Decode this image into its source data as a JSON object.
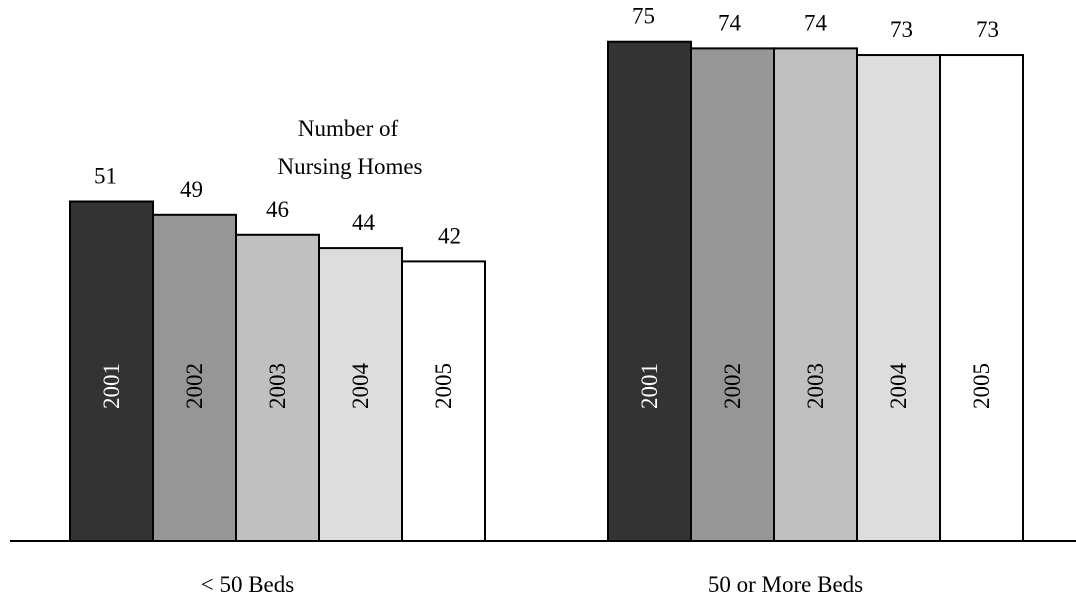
{
  "chart_data": {
    "type": "bar",
    "title": "Number of Nursing Homes",
    "categories": [
      "< 50 Beds",
      "50 or More Beds"
    ],
    "series": [
      {
        "name": "2001",
        "values": [
          51,
          75
        ],
        "color": "#333333",
        "label_color": "#ffffff"
      },
      {
        "name": "2002",
        "values": [
          49,
          74
        ],
        "color": "#969696",
        "label_color": "#000000"
      },
      {
        "name": "2003",
        "values": [
          46,
          74
        ],
        "color": "#c0c0c0",
        "label_color": "#000000"
      },
      {
        "name": "2004",
        "values": [
          44,
          73
        ],
        "color": "#dddddd",
        "label_color": "#000000"
      },
      {
        "name": "2005",
        "values": [
          42,
          73
        ],
        "color": "#ffffff",
        "label_color": "#000000"
      }
    ],
    "ylim": [
      0,
      75
    ],
    "grid": false,
    "legend": "labels inside bars"
  }
}
